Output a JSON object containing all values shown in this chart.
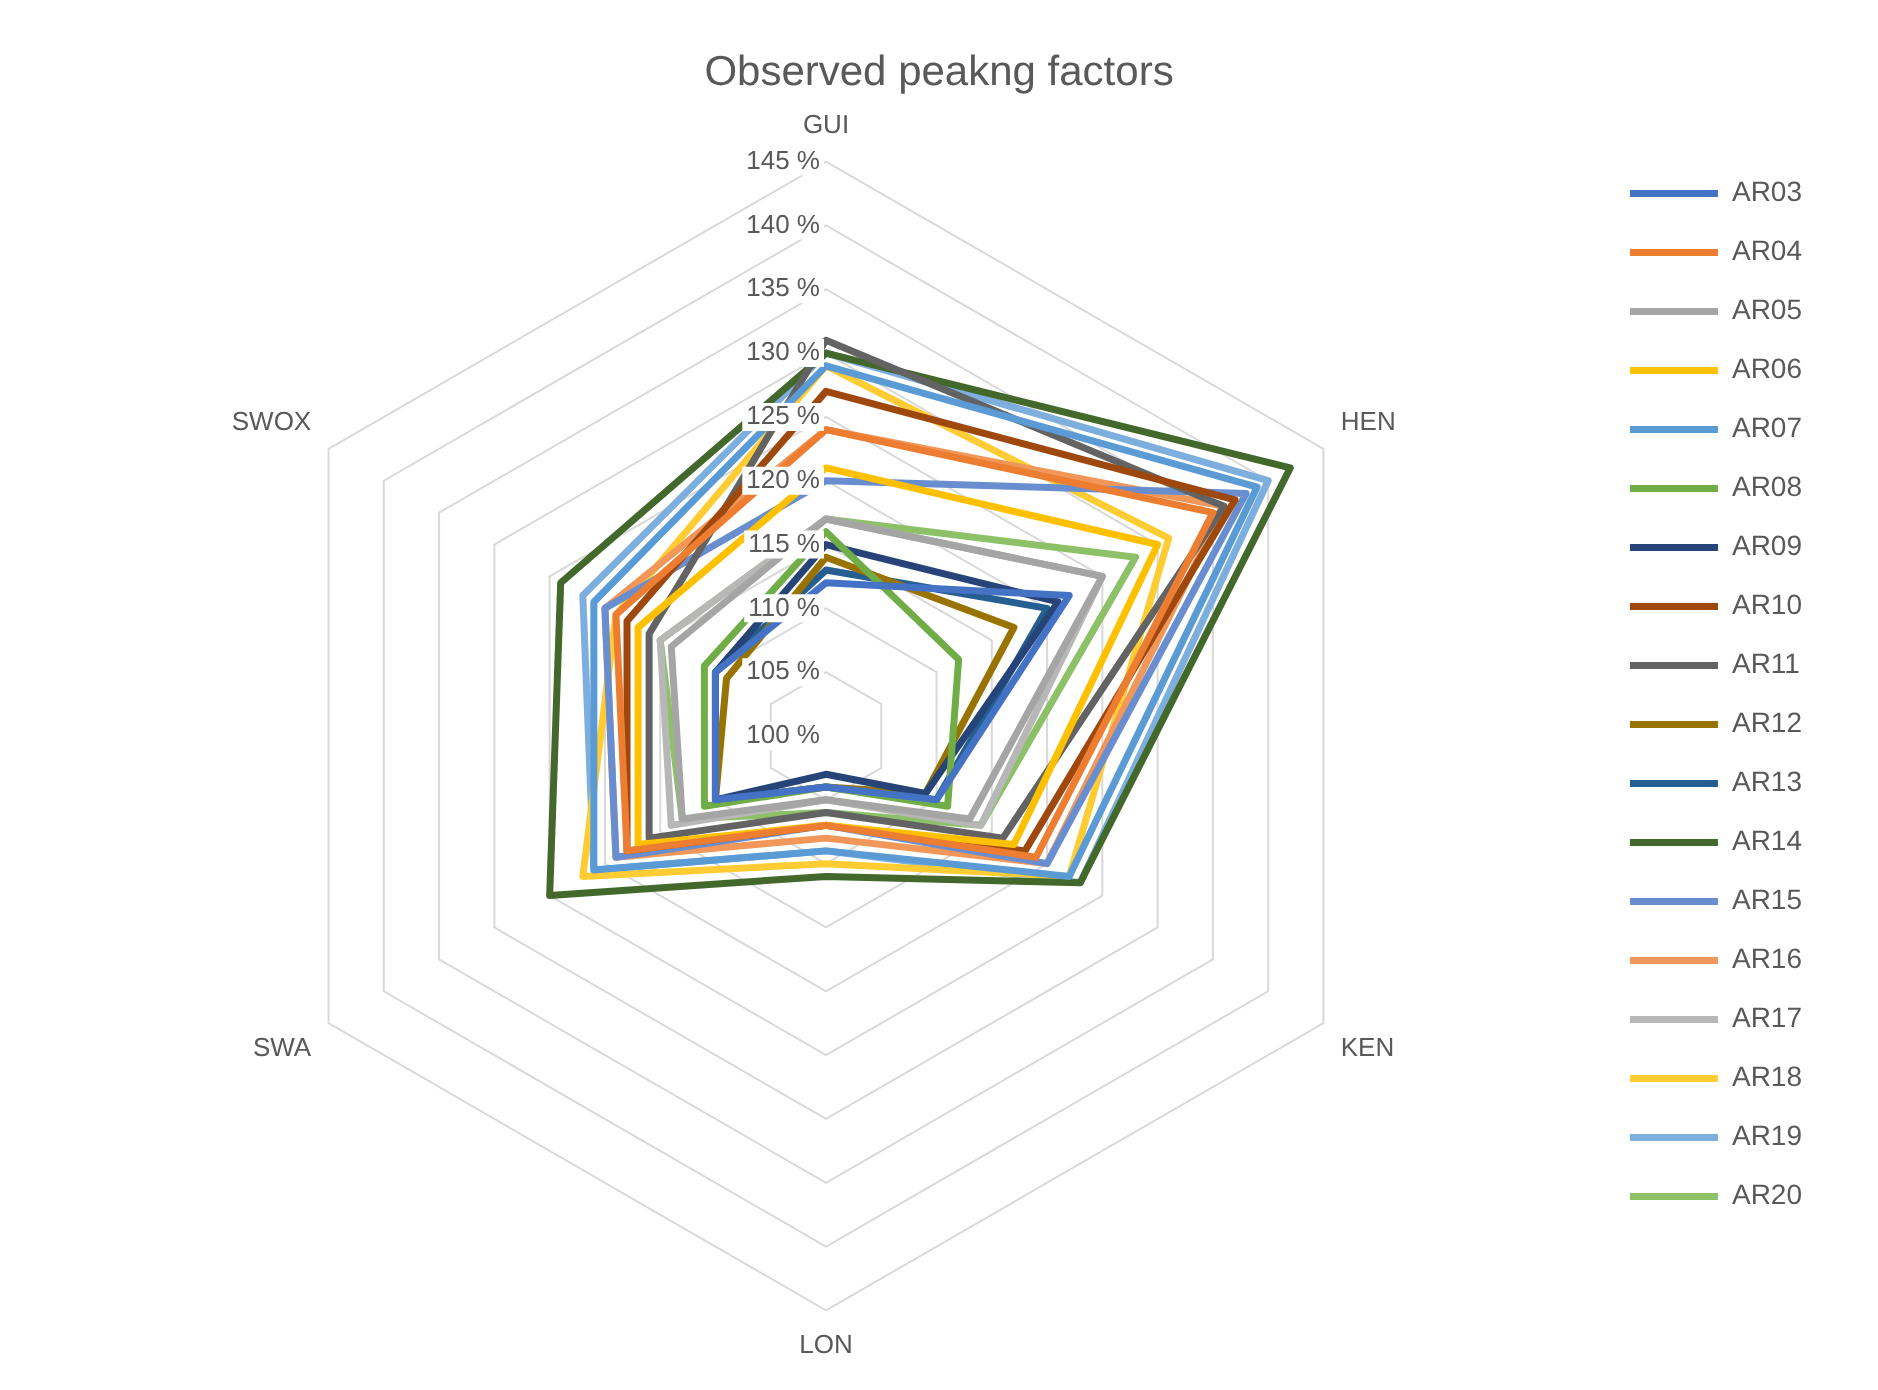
{
  "chart_data": {
    "type": "radar",
    "title": "Observed peakng factors",
    "categories": [
      "GUI",
      "HEN",
      "KEN",
      "LON",
      "SWA",
      "SWOX"
    ],
    "ylim": [
      100,
      145
    ],
    "yticks": [
      {
        "value": 100,
        "label": "100 %"
      },
      {
        "value": 105,
        "label": "105 %"
      },
      {
        "value": 110,
        "label": "110 %"
      },
      {
        "value": 115,
        "label": "115 %"
      },
      {
        "value": 120,
        "label": "120 %"
      },
      {
        "value": 125,
        "label": "125 %"
      },
      {
        "value": 130,
        "label": "130 %"
      },
      {
        "value": 135,
        "label": "135 %"
      },
      {
        "value": 140,
        "label": "140 %"
      },
      {
        "value": 145,
        "label": "145 %"
      }
    ],
    "grid": true,
    "legend": "right",
    "marker": "none",
    "line_style": "solid",
    "series": [
      {
        "name": "AR03",
        "color": "#4472c4",
        "values": [
          112,
          122,
          110,
          104,
          110,
          110
        ]
      },
      {
        "name": "AR04",
        "color": "#ed7d31",
        "values": [
          124,
          135,
          119,
          107,
          118,
          119
        ]
      },
      {
        "name": "AR05",
        "color": "#a5a5a5",
        "values": [
          117,
          125,
          113,
          105,
          113,
          114
        ]
      },
      {
        "name": "AR06",
        "color": "#ffc000",
        "values": [
          121,
          130,
          117,
          107,
          117,
          117
        ]
      },
      {
        "name": "AR07",
        "color": "#5b9bd5",
        "values": [
          129,
          139,
          122,
          109,
          121,
          121
        ]
      },
      {
        "name": "AR08",
        "color": "#70ad47",
        "values": [
          116,
          112,
          111,
          104,
          111,
          111
        ]
      },
      {
        "name": "AR09",
        "color": "#264478",
        "values": [
          115,
          121,
          109,
          103,
          110,
          110
        ]
      },
      {
        "name": "AR10",
        "color": "#9e480e",
        "values": [
          127,
          137,
          118,
          107,
          118,
          118
        ]
      },
      {
        "name": "AR11",
        "color": "#636363",
        "values": [
          131,
          136,
          116,
          106,
          116,
          116
        ]
      },
      {
        "name": "AR12",
        "color": "#997300",
        "values": [
          114,
          117,
          109,
          104,
          110,
          109
        ]
      },
      {
        "name": "AR13",
        "color": "#255e91",
        "values": [
          113,
          120,
          110,
          104,
          110,
          110
        ]
      },
      {
        "name": "AR14",
        "color": "#43682b",
        "values": [
          130,
          142,
          123,
          111,
          125,
          124
        ]
      },
      {
        "name": "AR15",
        "color": "#698ed0",
        "values": [
          120,
          138,
          120,
          107,
          119,
          120
        ]
      },
      {
        "name": "AR16",
        "color": "#f1975a",
        "values": [
          124,
          136,
          120,
          108,
          119,
          120
        ]
      },
      {
        "name": "AR17",
        "color": "#b7b7b7",
        "values": [
          117,
          125,
          114,
          105,
          114,
          115
        ]
      },
      {
        "name": "AR18",
        "color": "#ffcd33",
        "values": [
          129,
          131,
          122,
          110,
          122,
          119
        ]
      },
      {
        "name": "AR19",
        "color": "#7cafdd",
        "values": [
          130,
          140,
          123,
          109,
          121,
          122
        ]
      },
      {
        "name": "AR20",
        "color": "#8cc168",
        "values": [
          117,
          128,
          114,
          106,
          113,
          115
        ]
      }
    ]
  }
}
